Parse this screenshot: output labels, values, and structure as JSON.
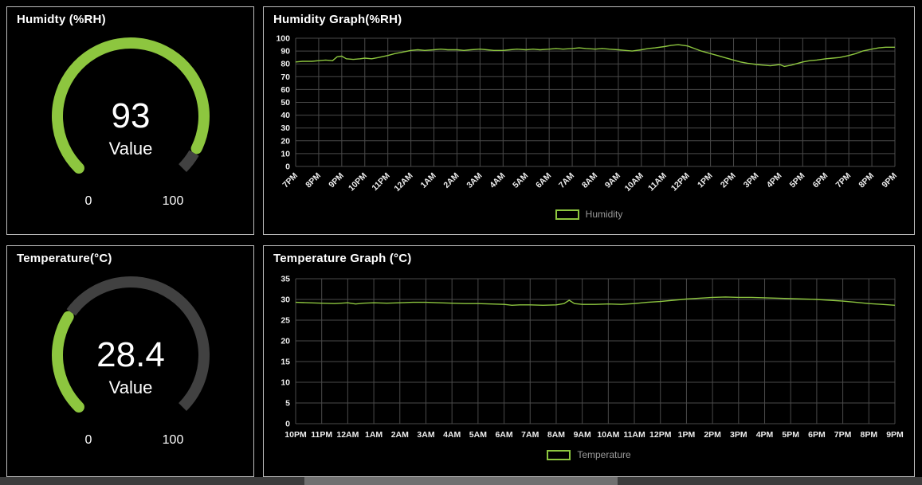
{
  "accent": "#8dc63f",
  "panels": {
    "humidity_gauge": {
      "title": "Humidty (%RH)",
      "value": "93",
      "value_num": 93,
      "min": 0,
      "max": 100,
      "value_label": "Value",
      "min_label": "0",
      "max_label": "100"
    },
    "temperature_gauge": {
      "title": "Temperature(°C)",
      "value": "28.4",
      "value_num": 28.4,
      "min": 0,
      "max": 100,
      "value_label": "Value",
      "min_label": "0",
      "max_label": "100"
    }
  },
  "chart_data": [
    {
      "id": "humidity",
      "type": "line",
      "title": "Humidity Graph(%RH)",
      "ylim": [
        0,
        100
      ],
      "yticks": [
        0,
        10,
        20,
        30,
        40,
        50,
        60,
        70,
        80,
        90,
        100
      ],
      "x_labels": [
        "7PM",
        "8PM",
        "9PM",
        "10PM",
        "11PM",
        "12AM",
        "1AM",
        "2AM",
        "3AM",
        "4AM",
        "5AM",
        "6AM",
        "7AM",
        "8AM",
        "9AM",
        "10AM",
        "11AM",
        "12PM",
        "1PM",
        "2PM",
        "3PM",
        "4PM",
        "5PM",
        "6PM",
        "7PM",
        "8PM",
        "9PM"
      ],
      "x_label_rotation": -45,
      "grid": true,
      "legend_position": "bottom",
      "legend": [
        {
          "label": "Humidity",
          "color": "#8dc63f"
        }
      ],
      "series": [
        {
          "name": "Humidity",
          "color": "#8dc63f",
          "points": [
            [
              0,
              81.5
            ],
            [
              0.3,
              82
            ],
            [
              0.7,
              82
            ],
            [
              1,
              82.5
            ],
            [
              1.3,
              83
            ],
            [
              1.6,
              82.5
            ],
            [
              1.8,
              85.5
            ],
            [
              2,
              86
            ],
            [
              2.2,
              84
            ],
            [
              2.5,
              83.5
            ],
            [
              2.8,
              84
            ],
            [
              3,
              84.5
            ],
            [
              3.3,
              84
            ],
            [
              3.6,
              85
            ],
            [
              4,
              86.5
            ],
            [
              4.3,
              88
            ],
            [
              4.6,
              89
            ],
            [
              5,
              90.5
            ],
            [
              5.3,
              91
            ],
            [
              5.6,
              90.5
            ],
            [
              6,
              91
            ],
            [
              6.3,
              91.5
            ],
            [
              6.6,
              91
            ],
            [
              7,
              91
            ],
            [
              7.3,
              90.5
            ],
            [
              7.6,
              91
            ],
            [
              8,
              91.5
            ],
            [
              8.3,
              91
            ],
            [
              8.6,
              90.5
            ],
            [
              9,
              90.5
            ],
            [
              9.3,
              91
            ],
            [
              9.6,
              91.5
            ],
            [
              10,
              91
            ],
            [
              10.3,
              91.5
            ],
            [
              10.6,
              91
            ],
            [
              11,
              91.5
            ],
            [
              11.3,
              92
            ],
            [
              11.6,
              91.5
            ],
            [
              12,
              92
            ],
            [
              12.3,
              92.5
            ],
            [
              12.6,
              92
            ],
            [
              13,
              91.5
            ],
            [
              13.3,
              92
            ],
            [
              13.6,
              91.5
            ],
            [
              14,
              91
            ],
            [
              14.3,
              90.5
            ],
            [
              14.6,
              90
            ],
            [
              15,
              91
            ],
            [
              15.3,
              92
            ],
            [
              15.6,
              92.5
            ],
            [
              16,
              93.5
            ],
            [
              16.3,
              94.5
            ],
            [
              16.6,
              95
            ],
            [
              17,
              94
            ],
            [
              17.3,
              92
            ],
            [
              17.6,
              90
            ],
            [
              18,
              88
            ],
            [
              18.3,
              86.5
            ],
            [
              18.6,
              85
            ],
            [
              19,
              83
            ],
            [
              19.3,
              81.5
            ],
            [
              19.6,
              80.5
            ],
            [
              20,
              79.5
            ],
            [
              20.3,
              79
            ],
            [
              20.6,
              78.5
            ],
            [
              21,
              79.5
            ],
            [
              21.2,
              78
            ],
            [
              21.5,
              79
            ],
            [
              22,
              81.5
            ],
            [
              22.3,
              82.5
            ],
            [
              22.6,
              83
            ],
            [
              23,
              84
            ],
            [
              23.3,
              84.5
            ],
            [
              23.6,
              85
            ],
            [
              24,
              86.5
            ],
            [
              24.3,
              88
            ],
            [
              24.6,
              90
            ],
            [
              25,
              91.5
            ],
            [
              25.3,
              92.5
            ],
            [
              25.6,
              93
            ],
            [
              26,
              93
            ]
          ]
        }
      ]
    },
    {
      "id": "temperature",
      "type": "line",
      "title": "Temperature Graph (°C)",
      "ylim": [
        0,
        35
      ],
      "yticks": [
        0,
        5,
        10,
        15,
        20,
        25,
        30,
        35
      ],
      "x_labels": [
        "10PM",
        "11PM",
        "12AM",
        "1AM",
        "2AM",
        "3AM",
        "4AM",
        "5AM",
        "6AM",
        "7AM",
        "8AM",
        "9AM",
        "10AM",
        "11AM",
        "12PM",
        "1PM",
        "2PM",
        "3PM",
        "4PM",
        "5PM",
        "6PM",
        "7PM",
        "8PM",
        "9PM"
      ],
      "x_label_rotation": 0,
      "grid": true,
      "legend_position": "bottom",
      "legend": [
        {
          "label": "Temperature",
          "color": "#8dc63f"
        }
      ],
      "series": [
        {
          "name": "Temperature",
          "color": "#8dc63f",
          "points": [
            [
              0,
              29.3
            ],
            [
              0.5,
              29.2
            ],
            [
              1,
              29.1
            ],
            [
              1.5,
              29.0
            ],
            [
              2,
              29.2
            ],
            [
              2.3,
              28.9
            ],
            [
              2.6,
              29.1
            ],
            [
              3,
              29.2
            ],
            [
              3.5,
              29.1
            ],
            [
              4,
              29.2
            ],
            [
              4.5,
              29.3
            ],
            [
              5,
              29.3
            ],
            [
              5.5,
              29.2
            ],
            [
              6,
              29.1
            ],
            [
              6.5,
              29.0
            ],
            [
              7,
              29.0
            ],
            [
              7.5,
              28.9
            ],
            [
              8,
              28.8
            ],
            [
              8.3,
              28.6
            ],
            [
              8.6,
              28.7
            ],
            [
              9,
              28.7
            ],
            [
              9.5,
              28.6
            ],
            [
              10,
              28.7
            ],
            [
              10.3,
              29.0
            ],
            [
              10.5,
              29.8
            ],
            [
              10.7,
              29.0
            ],
            [
              11,
              28.8
            ],
            [
              11.5,
              28.8
            ],
            [
              12,
              28.9
            ],
            [
              12.5,
              28.8
            ],
            [
              13,
              29.0
            ],
            [
              13.5,
              29.3
            ],
            [
              14,
              29.5
            ],
            [
              14.5,
              29.8
            ],
            [
              15,
              30.1
            ],
            [
              15.5,
              30.3
            ],
            [
              16,
              30.5
            ],
            [
              16.5,
              30.6
            ],
            [
              17,
              30.5
            ],
            [
              17.5,
              30.5
            ],
            [
              18,
              30.4
            ],
            [
              18.5,
              30.3
            ],
            [
              19,
              30.2
            ],
            [
              19.5,
              30.1
            ],
            [
              20,
              30.0
            ],
            [
              20.5,
              29.8
            ],
            [
              21,
              29.6
            ],
            [
              21.5,
              29.3
            ],
            [
              22,
              29.0
            ],
            [
              22.5,
              28.8
            ],
            [
              23,
              28.6
            ]
          ]
        }
      ]
    }
  ]
}
